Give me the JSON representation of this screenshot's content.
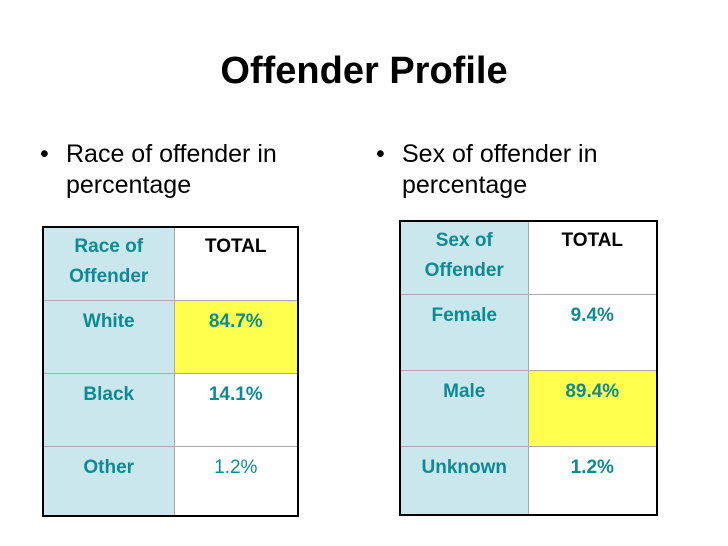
{
  "title": "Offender Profile",
  "bullets": {
    "left": {
      "symbol": "•",
      "text": "Race of offender in percentage"
    },
    "right": {
      "symbol": "•",
      "text": "Sex of offender in percentage"
    }
  },
  "race_table": {
    "header": {
      "label_line1": "Race of",
      "label_line2": "Offender",
      "total": "TOTAL"
    },
    "rows": [
      {
        "label": "White",
        "value": "84.7%"
      },
      {
        "label": "Black",
        "value": "14.1%"
      },
      {
        "label": "Other",
        "value": "1.2%"
      }
    ]
  },
  "sex_table": {
    "header": {
      "label_line1": "Sex of",
      "label_line2": "Offender",
      "total": "TOTAL"
    },
    "rows": [
      {
        "label": "Female",
        "value": "9.4%"
      },
      {
        "label": "Male",
        "value": "89.4%"
      },
      {
        "label": "Unknown",
        "value": "1.2%"
      }
    ]
  },
  "colors": {
    "text_teal": "#0e8a93",
    "label_cell_bg": "#c9e7ec",
    "highlight_bg": "#ffff4d"
  }
}
